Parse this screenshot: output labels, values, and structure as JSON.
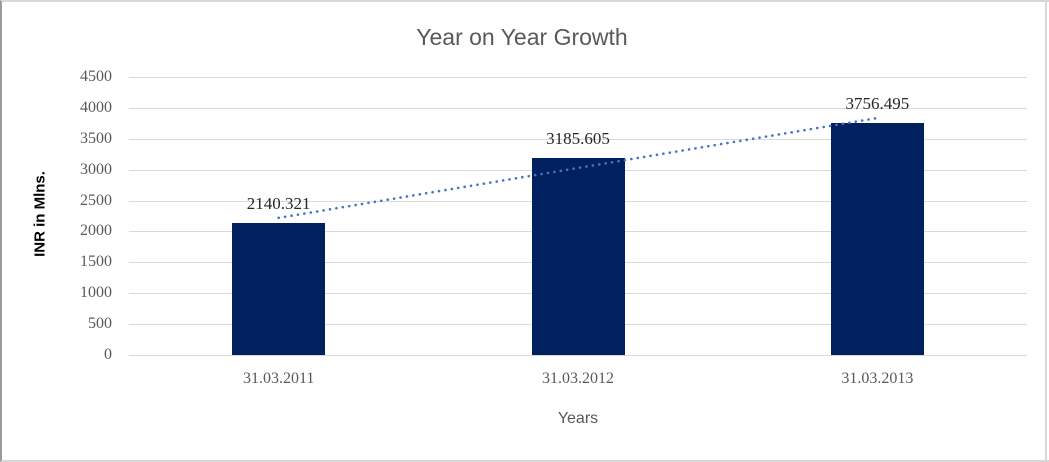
{
  "chart_data": {
    "type": "bar",
    "title": "Year on Year Growth",
    "xlabel": "Years",
    "ylabel": "INR in Mlns.",
    "categories": [
      "31.03.2011",
      "31.03.2012",
      "31.03.2013"
    ],
    "values": [
      2140.321,
      3185.605,
      3756.495
    ],
    "data_labels": [
      "2140.321",
      "3185.605",
      "3756.495"
    ],
    "ylim": [
      0,
      4500
    ],
    "yticks": [
      0,
      500,
      1000,
      1500,
      2000,
      2500,
      3000,
      3500,
      4000,
      4500
    ],
    "grid": "horizontal",
    "legend": "none",
    "trendline": {
      "type": "linear",
      "style": "dotted",
      "color": "#4472c4"
    },
    "colors": {
      "bar": "#002060",
      "gridline": "#d9d9d9",
      "axis_line": "#d9d9d9",
      "title_text": "#595959",
      "axis_text": "#595959",
      "data_label_text": "#262626"
    }
  }
}
